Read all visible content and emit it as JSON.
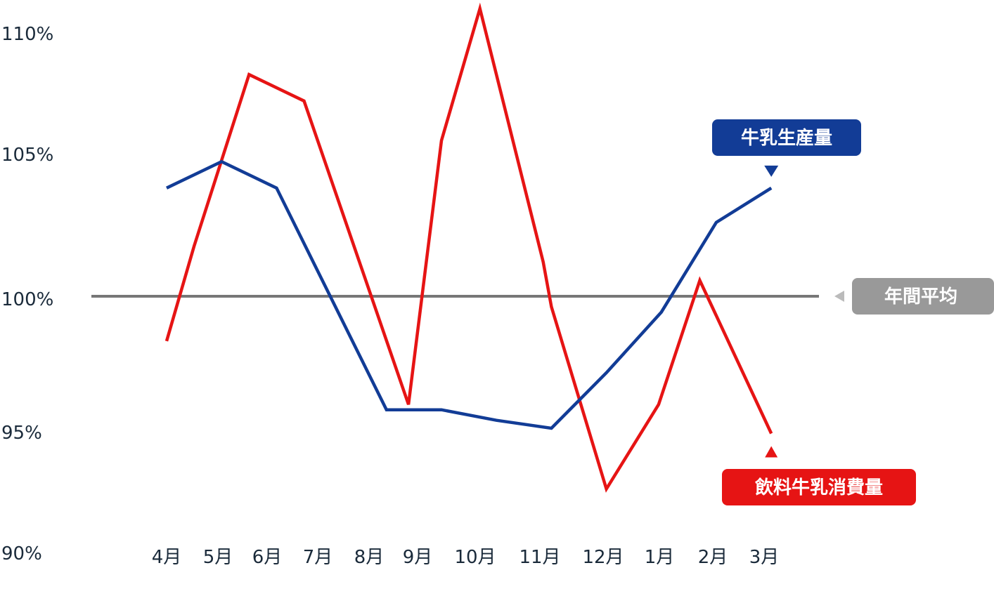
{
  "chart_data": {
    "type": "line",
    "categories": [
      "4月",
      "5月",
      "6月",
      "7月",
      "8月",
      "9月",
      "10月",
      "11月",
      "12月",
      "1月",
      "2月",
      "3月"
    ],
    "y_ticks": [
      "90%",
      "95%",
      "100%",
      "105%",
      "110%"
    ],
    "ylim": [
      90,
      111
    ],
    "grid": false,
    "reference_line": {
      "name": "年間平均",
      "value": 100,
      "color": "#777777",
      "label_color": "#999999"
    },
    "series": [
      {
        "name": "牛乳生産量",
        "color": "#123c96",
        "points": [
          {
            "x": 0,
            "y": 104.1
          },
          {
            "x": 1,
            "y": 105.1
          },
          {
            "x": 2,
            "y": 104.1
          },
          {
            "x": 3,
            "y": 99.9
          },
          {
            "x": 4,
            "y": 95.7
          },
          {
            "x": 5,
            "y": 95.7
          },
          {
            "x": 6,
            "y": 95.3
          },
          {
            "x": 7,
            "y": 95.0
          },
          {
            "x": 8,
            "y": 97.1
          },
          {
            "x": 9,
            "y": 99.4
          },
          {
            "x": 10,
            "y": 102.8
          },
          {
            "x": 11,
            "y": 104.1
          }
        ]
      },
      {
        "name": "飲料牛乳消費量",
        "color": "#e61414",
        "points": [
          {
            "x": 0,
            "y": 98.3
          },
          {
            "x": 0.5,
            "y": 101.9
          },
          {
            "x": 1.5,
            "y": 108.4
          },
          {
            "x": 2.5,
            "y": 107.4
          },
          {
            "x": 4.4,
            "y": 95.9
          },
          {
            "x": 5.0,
            "y": 105.9
          },
          {
            "x": 5.7,
            "y": 110.9
          },
          {
            "x": 6.85,
            "y": 101.3
          },
          {
            "x": 7.0,
            "y": 99.6
          },
          {
            "x": 8.0,
            "y": 92.7
          },
          {
            "x": 8.95,
            "y": 95.9
          },
          {
            "x": 9.7,
            "y": 100.6
          },
          {
            "x": 11.0,
            "y": 94.8
          }
        ]
      }
    ]
  }
}
